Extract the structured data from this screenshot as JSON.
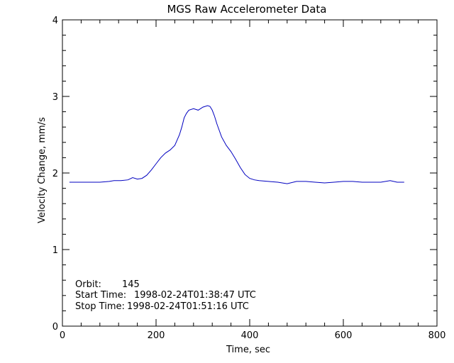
{
  "chart_data": {
    "type": "line",
    "title": "MGS Raw Accelerometer Data",
    "xlabel": "Time, sec",
    "ylabel": "Velocity Change, mm/s",
    "xlim": [
      0,
      800
    ],
    "ylim": [
      0,
      4
    ],
    "x_ticks": [
      0,
      200,
      400,
      600,
      800
    ],
    "y_ticks": [
      0,
      1,
      2,
      3,
      4
    ],
    "x_tick_labels": [
      "0",
      "200",
      "400",
      "600",
      "800"
    ],
    "y_tick_labels": [
      "0",
      "1",
      "2",
      "3",
      "4"
    ],
    "grid": false,
    "line_color": "#0000c0",
    "series": [
      {
        "x": [
          15,
          40,
          60,
          80,
          100,
          110,
          125,
          140,
          150,
          160,
          170,
          180,
          190,
          200,
          210,
          220,
          230,
          240,
          250,
          255,
          260,
          265,
          270,
          280,
          290,
          300,
          310,
          315,
          320,
          325,
          330,
          340,
          350,
          360,
          370,
          380,
          390,
          400,
          410,
          420,
          440,
          460,
          480,
          500,
          520,
          540,
          560,
          580,
          600,
          620,
          640,
          660,
          680,
          700,
          715,
          730
        ],
        "y": [
          1.88,
          1.88,
          1.88,
          1.88,
          1.89,
          1.9,
          1.9,
          1.91,
          1.94,
          1.92,
          1.93,
          1.97,
          2.04,
          2.12,
          2.2,
          2.26,
          2.3,
          2.36,
          2.5,
          2.6,
          2.72,
          2.78,
          2.82,
          2.84,
          2.82,
          2.86,
          2.88,
          2.87,
          2.82,
          2.74,
          2.64,
          2.47,
          2.36,
          2.28,
          2.18,
          2.07,
          1.98,
          1.93,
          1.91,
          1.9,
          1.89,
          1.88,
          1.86,
          1.89,
          1.89,
          1.88,
          1.87,
          1.88,
          1.89,
          1.89,
          1.88,
          1.88,
          1.88,
          1.9,
          1.88,
          1.88
        ]
      }
    ]
  },
  "annotations": [
    {
      "label": "Orbit:",
      "value": "145"
    },
    {
      "label": "Start Time:",
      "value": "1998-02-24T01:38:47 UTC"
    },
    {
      "label": "Stop Time:",
      "value": "1998-02-24T01:51:16 UTC"
    }
  ]
}
